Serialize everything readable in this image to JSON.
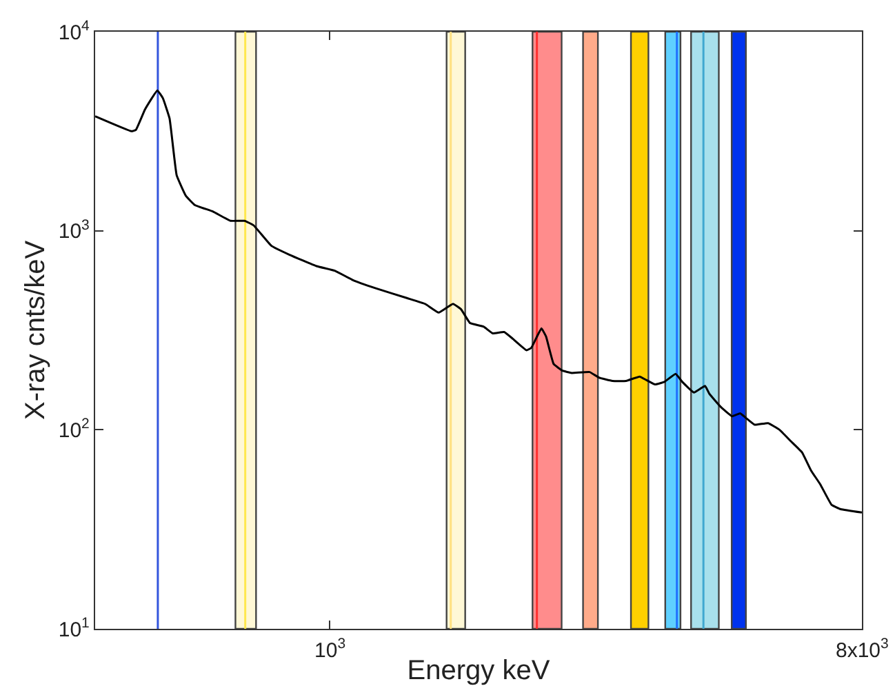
{
  "chart_data": {
    "type": "line",
    "xlabel": "Energy keV",
    "ylabel": "X-ray cnts/keV",
    "log": "xy",
    "grid": false,
    "xlim": [
      400,
      8000
    ],
    "ylim": [
      10,
      10000
    ],
    "xticks": [
      {
        "value": 1000,
        "label": "10$^{3}$"
      },
      {
        "value": 8000,
        "label": "8x10$^{3}$"
      }
    ],
    "yticks": [
      {
        "value": 10,
        "label": "10$^{1}$"
      },
      {
        "value": 100,
        "label": "10$^{2}$"
      },
      {
        "value": 1000,
        "label": "10$^{3}$"
      },
      {
        "value": 10000,
        "label": "10$^{4}$"
      }
    ],
    "bands": [
      {
        "axis": "x",
        "from": 692,
        "to": 750,
        "color": "#fff8d6"
      },
      {
        "axis": "x",
        "from": 1579,
        "to": 1698,
        "color": "#fff8d6"
      },
      {
        "axis": "x",
        "from": 2209,
        "to": 2475,
        "color": "#ff8c8c"
      },
      {
        "axis": "x",
        "from": 2691,
        "to": 2852,
        "color": "#ffab8a"
      },
      {
        "axis": "x",
        "from": 3245,
        "to": 3474,
        "color": "#ffd000"
      },
      {
        "axis": "x",
        "from": 3710,
        "to": 3938,
        "color": "#5fd0ff"
      },
      {
        "axis": "x",
        "from": 4104,
        "to": 4574,
        "color": "#a8e0ec"
      },
      {
        "axis": "x",
        "from": 4810,
        "to": 5085,
        "color": "#0033ee"
      }
    ],
    "ref_lines": [
      {
        "axis": "x",
        "value": 511,
        "color": "#3355dd"
      },
      {
        "axis": "x",
        "value": 719,
        "color": "#ffe84d"
      },
      {
        "axis": "x",
        "value": 1605,
        "color": "#ffe080"
      },
      {
        "axis": "x",
        "value": 2247,
        "color": "#ff3030"
      },
      {
        "axis": "x",
        "value": 3883,
        "color": "#2070ff"
      },
      {
        "axis": "x",
        "value": 4307,
        "color": "#40a8d0"
      }
    ],
    "series": [
      {
        "color": "#000000",
        "x": [
          400,
          461,
          469,
          486,
          510,
          521,
          535,
          550,
          570,
          590,
          634,
          679,
          717,
          743,
          796,
          855,
          950,
          1020,
          1094,
          1195,
          1352,
          1452,
          1531,
          1619,
          1671,
          1730,
          1824,
          1891,
          1977,
          2047,
          2158,
          2198,
          2287,
          2329,
          2399,
          2485,
          2574,
          2762,
          2863,
          3019,
          3184,
          3357,
          3444,
          3566,
          3698,
          3864,
          3966,
          4150,
          4335,
          4406,
          4612,
          4819,
          4973,
          5080,
          5262,
          5546,
          5799,
          6058,
          6334,
          6561,
          6799,
          7105,
          7367,
          8000
        ],
        "values": [
          3758,
          3162,
          3213,
          4070,
          5070,
          4645,
          3663,
          1901,
          1500,
          1349,
          1248,
          1122,
          1122,
          1064,
          841,
          757,
          664,
          630,
          566,
          515,
          459,
          429,
          388,
          429,
          403,
          344,
          330,
          305,
          310,
          286,
          251,
          258,
          323,
          294,
          214,
          198,
          193,
          195,
          183,
          176,
          176,
          185,
          178,
          169,
          174,
          191,
          174,
          154,
          166,
          152,
          130,
          117,
          121,
          115,
          106,
          108,
          100,
          87.7,
          76.9,
          62.3,
          53.2,
          42.0,
          39.9,
          38.4
        ]
      }
    ]
  }
}
